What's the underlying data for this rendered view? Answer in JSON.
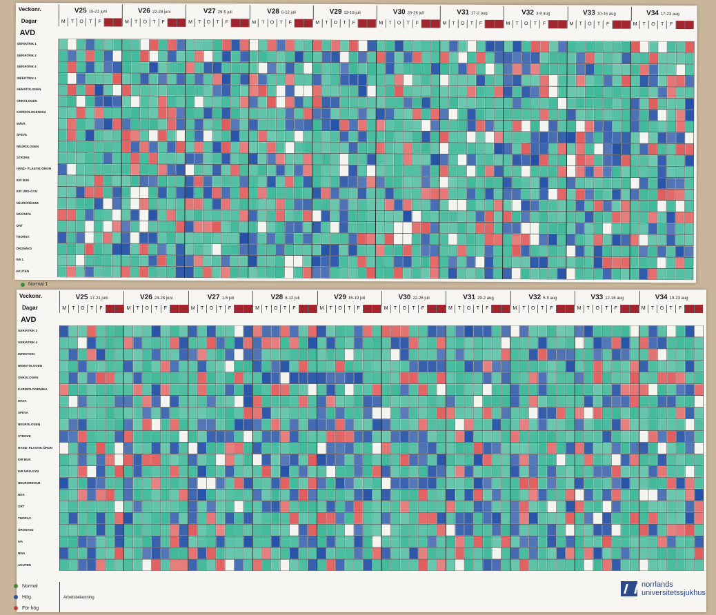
{
  "top": {
    "veckonr_label": "Veckonr.",
    "dagar_label": "Dagar",
    "avd_label": "AVD",
    "weeks": [
      {
        "week": "V25",
        "dates": "15-21 juni"
      },
      {
        "week": "V26",
        "dates": "22-28 juni"
      },
      {
        "week": "V27",
        "dates": "29-5 juli"
      },
      {
        "week": "V28",
        "dates": "6-12 juli"
      },
      {
        "week": "V29",
        "dates": "13-19 juli"
      },
      {
        "week": "V30",
        "dates": "20-26 juli"
      },
      {
        "week": "V31",
        "dates": "27-2 aug"
      },
      {
        "week": "V32",
        "dates": "3-9 aug"
      },
      {
        "week": "V33",
        "dates": "10-16 aug"
      },
      {
        "week": "V34",
        "dates": "17-23 aug"
      }
    ],
    "days": [
      "M",
      "T",
      "O",
      "T",
      "F"
    ],
    "departments": [
      "GERIATRIK 1",
      "GERIATRIK 2",
      "GERIATRIK 4",
      "INFEKTION 1",
      "HEMATOLOGEN",
      "ONKOLOGEN",
      "KARDIOLOGEN/HIA",
      "MAVA",
      "SPEVA",
      "NEUROLOGEN",
      "STROKE",
      "HAND- PLASTIK-ÖRON",
      "KIR BUK",
      "KIR URO-GYN",
      "NEUROREHAB",
      "NKK/NIVA",
      "ORT",
      "THORAX",
      "ÖRONAVD",
      "IVA 1",
      "AKUTEN"
    ],
    "legend_normal": "Normal 1"
  },
  "bottom": {
    "veckonr_label": "Veckonr.",
    "dagar_label": "Dagar",
    "avd_label": "AVD",
    "weeks": [
      {
        "week": "V25",
        "dates": "17-21 juni"
      },
      {
        "week": "V26",
        "dates": "24-28 juni"
      },
      {
        "week": "V27",
        "dates": "1-5 juli"
      },
      {
        "week": "V28",
        "dates": "8-12 juli"
      },
      {
        "week": "V29",
        "dates": "15-19 juli"
      },
      {
        "week": "V30",
        "dates": "22-26 juli"
      },
      {
        "week": "V31",
        "dates": "29-2 aug"
      },
      {
        "week": "V32",
        "dates": "5-9 aug"
      },
      {
        "week": "V33",
        "dates": "12-16 aug"
      },
      {
        "week": "V34",
        "dates": "19-23 aug"
      }
    ],
    "days": [
      "M",
      "T",
      "O",
      "T",
      "F"
    ],
    "departments": [
      "GERIATRIK 2",
      "GERIATRIK 4",
      "INFEKTION",
      "HEMATOLOGEN",
      "ONKOLOGEN",
      "KARDIOLOGEN/HIA",
      "MAVA",
      "SPEVA",
      "NEUROLOGEN",
      "STROKE",
      "HAND- PLASTIK-ÖRON",
      "KIR BUK",
      "KIR URO-GYN",
      "NEUROREHAB",
      "NKK",
      "ORT",
      "THORAX",
      "ÖRONAVD",
      "IVA",
      "NIVA",
      "AKUTEN"
    ]
  },
  "legend": {
    "items": [
      {
        "label": "Normal",
        "color": "#3a8a3a"
      },
      {
        "label": "Hög",
        "color": "#2b4fa0"
      },
      {
        "label": "För hög",
        "color": "#c43a3a"
      }
    ],
    "caption": "Arbetsbelastning"
  },
  "logo": {
    "line1": "norrlands",
    "line2": "universitetssjukhus"
  },
  "colors": {
    "green": "#3fb99a",
    "blue": "#2552a6",
    "red": "#e15c5c",
    "weekend": "#a2242d"
  }
}
